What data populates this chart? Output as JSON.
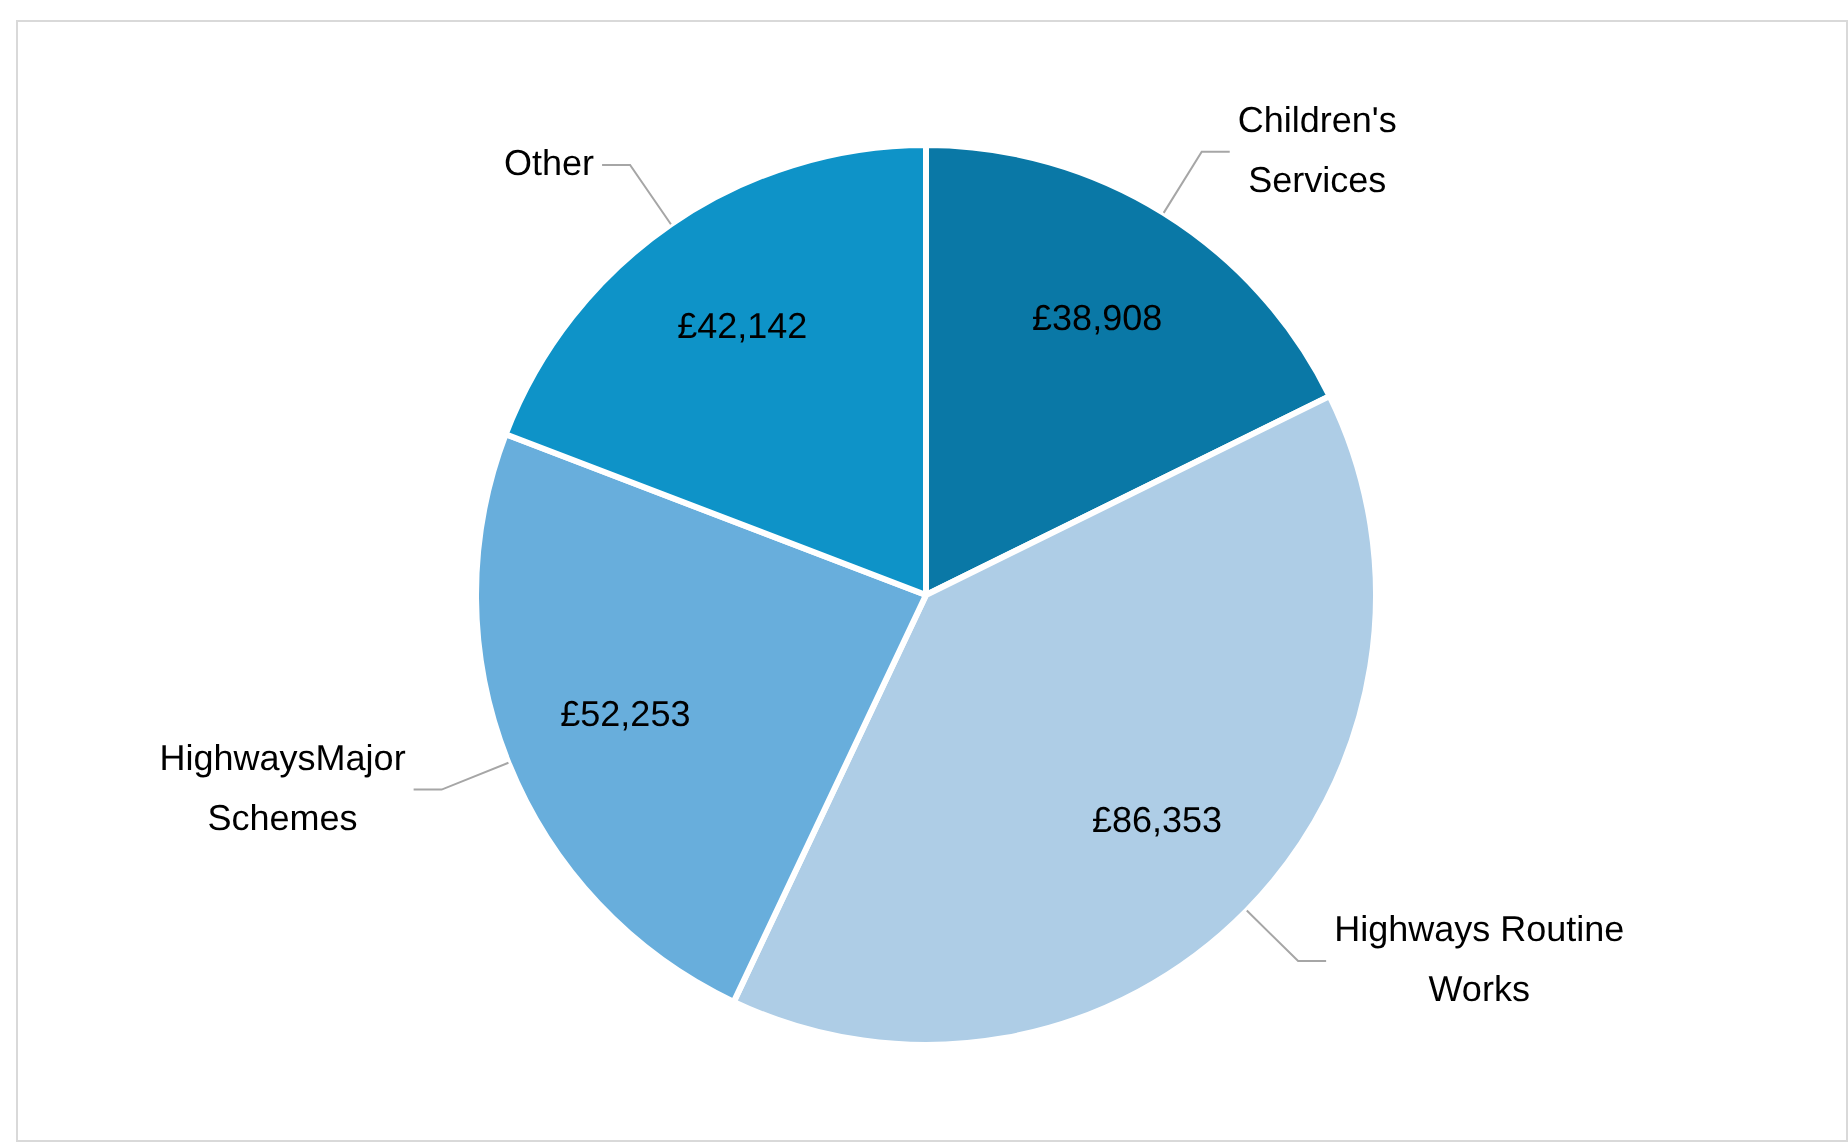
{
  "chart_data": {
    "type": "pie",
    "categories": [
      "Children's Services",
      "Highways Routine Works",
      "HighwaysMajor Schemes",
      "Other"
    ],
    "values": [
      38908,
      86353,
      52253,
      42142
    ],
    "value_labels": [
      "£38,908",
      "£86,353",
      "£52,253",
      "£42,142"
    ],
    "colors": [
      "#0a78a6",
      "#aecde6",
      "#68aedc",
      "#0e93c8"
    ],
    "legend": false
  }
}
